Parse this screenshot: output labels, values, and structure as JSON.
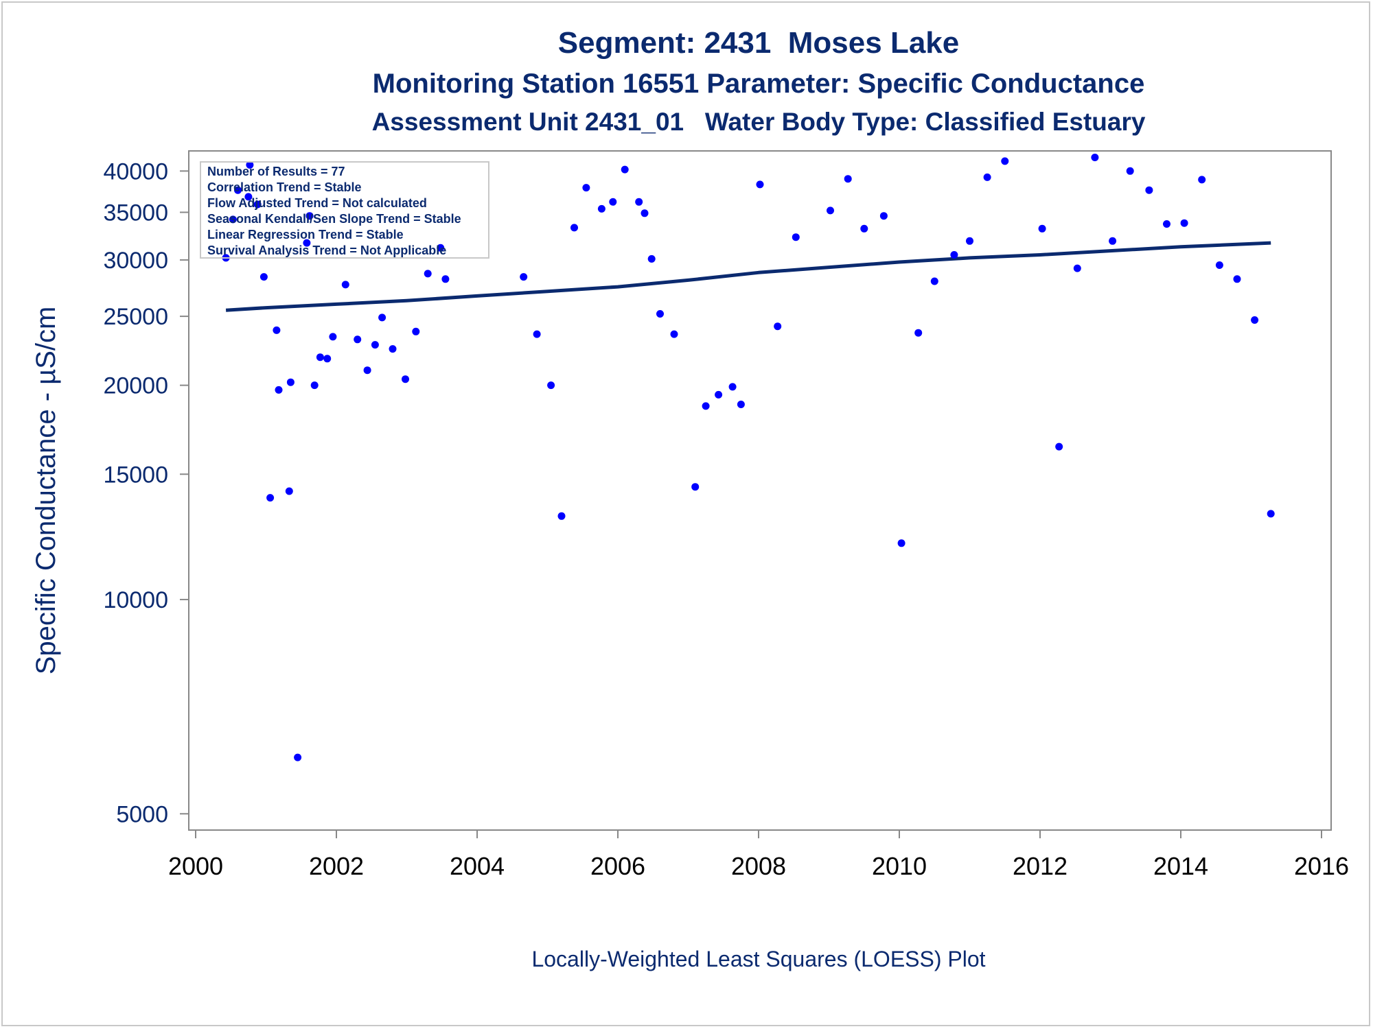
{
  "titles": {
    "line1": "Segment: 2431  Moses Lake",
    "line2": "Monitoring Station 16551 Parameter: Specific Conductance",
    "line3": "Assessment Unit 2431_01   Water Body Type: Classified Estuary"
  },
  "footnote": "Locally-Weighted Least Squares (LOESS) Plot",
  "stats_box": [
    "Number of Results = 77",
    "Correlation Trend = Stable",
    "Flow Adjusted Trend = Not calculated",
    "Seasonal Kendall/Sen Slope Trend = Stable",
    "Linear Regression Trend = Stable",
    "Survival Analysis Trend = Not Applicable"
  ],
  "colors": {
    "text": "#0b2a6f",
    "points": "#0000ff",
    "loess_line": "#0b2a6f",
    "axis": "#888888"
  },
  "chart_data": {
    "type": "scatter",
    "xlabel": "",
    "ylabel": "Specific Conductance -  µS/cm",
    "xlim": [
      2000,
      2016
    ],
    "ylim": [
      4850,
      42500
    ],
    "yscale": "log",
    "xticks": [
      2000,
      2002,
      2004,
      2006,
      2008,
      2010,
      2012,
      2014,
      2016
    ],
    "yticks": [
      5000,
      10000,
      15000,
      20000,
      25000,
      30000,
      35000,
      40000
    ],
    "grid": false,
    "legend": "none",
    "series": [
      {
        "kind": "points",
        "points": [
          [
            2000.43,
            30200
          ],
          [
            2000.53,
            34200
          ],
          [
            2000.6,
            37600
          ],
          [
            2000.75,
            36800
          ],
          [
            2000.77,
            40800
          ],
          [
            2000.88,
            35900
          ],
          [
            2000.97,
            28400
          ],
          [
            2001.06,
            13900
          ],
          [
            2001.15,
            23900
          ],
          [
            2001.18,
            19700
          ],
          [
            2001.33,
            14200
          ],
          [
            2001.35,
            20200
          ],
          [
            2001.45,
            6000
          ],
          [
            2001.58,
            31700
          ],
          [
            2001.62,
            34600
          ],
          [
            2001.69,
            20000
          ],
          [
            2001.77,
            21900
          ],
          [
            2001.87,
            21800
          ],
          [
            2001.95,
            23400
          ],
          [
            2002.13,
            27700
          ],
          [
            2002.3,
            23200
          ],
          [
            2002.44,
            21000
          ],
          [
            2002.55,
            22800
          ],
          [
            2002.65,
            24900
          ],
          [
            2002.8,
            22500
          ],
          [
            2002.98,
            20400
          ],
          [
            2003.13,
            23800
          ],
          [
            2003.3,
            28700
          ],
          [
            2003.48,
            31200
          ],
          [
            2003.55,
            28200
          ],
          [
            2004.66,
            28400
          ],
          [
            2004.85,
            23600
          ],
          [
            2005.05,
            20000
          ],
          [
            2005.2,
            13100
          ],
          [
            2005.38,
            33300
          ],
          [
            2005.55,
            37900
          ],
          [
            2005.77,
            35400
          ],
          [
            2005.93,
            36200
          ],
          [
            2006.1,
            40200
          ],
          [
            2006.3,
            36200
          ],
          [
            2006.38,
            34900
          ],
          [
            2006.48,
            30100
          ],
          [
            2006.6,
            25200
          ],
          [
            2006.8,
            23600
          ],
          [
            2007.1,
            14400
          ],
          [
            2007.25,
            18700
          ],
          [
            2007.43,
            19400
          ],
          [
            2007.63,
            19900
          ],
          [
            2007.75,
            18800
          ],
          [
            2008.02,
            38300
          ],
          [
            2008.27,
            24200
          ],
          [
            2008.53,
            32300
          ],
          [
            2009.02,
            35200
          ],
          [
            2009.27,
            39000
          ],
          [
            2009.5,
            33200
          ],
          [
            2009.78,
            34600
          ],
          [
            2010.03,
            12000
          ],
          [
            2010.27,
            23700
          ],
          [
            2010.5,
            28000
          ],
          [
            2010.78,
            30500
          ],
          [
            2011.0,
            31900
          ],
          [
            2011.25,
            39200
          ],
          [
            2011.5,
            41300
          ],
          [
            2012.03,
            33200
          ],
          [
            2012.27,
            16400
          ],
          [
            2012.53,
            29200
          ],
          [
            2012.78,
            41800
          ],
          [
            2013.03,
            31900
          ],
          [
            2013.28,
            40000
          ],
          [
            2013.55,
            37600
          ],
          [
            2013.8,
            33700
          ],
          [
            2014.05,
            33800
          ],
          [
            2014.3,
            38900
          ],
          [
            2014.55,
            29500
          ],
          [
            2014.8,
            28200
          ],
          [
            2015.05,
            24700
          ],
          [
            2015.28,
            13200
          ]
        ]
      },
      {
        "kind": "loess_line",
        "points": [
          [
            2000.43,
            25500
          ],
          [
            2001.0,
            25700
          ],
          [
            2002.0,
            26000
          ],
          [
            2003.0,
            26300
          ],
          [
            2004.0,
            26700
          ],
          [
            2005.0,
            27100
          ],
          [
            2006.0,
            27500
          ],
          [
            2007.0,
            28100
          ],
          [
            2008.0,
            28800
          ],
          [
            2009.0,
            29300
          ],
          [
            2010.0,
            29800
          ],
          [
            2011.0,
            30200
          ],
          [
            2012.0,
            30500
          ],
          [
            2013.0,
            30900
          ],
          [
            2014.0,
            31300
          ],
          [
            2015.28,
            31700
          ]
        ]
      }
    ]
  }
}
